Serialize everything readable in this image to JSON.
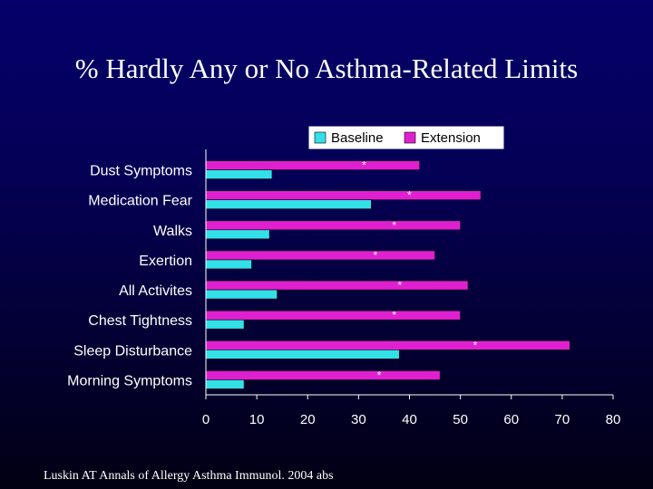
{
  "slide": {
    "title": "% Hardly Any or No Asthma-Related Limits",
    "source": "Luskin AT  Annals of Allergy Asthma Immunol. 2004 abs"
  },
  "colors": {
    "baseline": "#33e0e8",
    "extension": "#e020d0",
    "axis": "#ffffff"
  },
  "chart_data": {
    "type": "bar",
    "orientation": "horizontal",
    "title": "",
    "xlabel": "",
    "ylabel": "",
    "xlim": [
      0,
      80
    ],
    "x_ticks": [
      "0",
      "10",
      "20",
      "30",
      "40",
      "50",
      "60",
      "70",
      "80"
    ],
    "grid": false,
    "legend": "top-right",
    "categories": [
      "Dust Symptoms",
      "Medication Fear",
      "Walks",
      "Exertion",
      "All Activites",
      "Chest Tightness",
      "Sleep Disturbance",
      "Morning Symptoms"
    ],
    "series": [
      {
        "name": "Baseline",
        "values": [
          13,
          32.5,
          12.5,
          9,
          14,
          7.5,
          38,
          7.5
        ]
      },
      {
        "name": "Extension",
        "values": [
          42,
          54,
          50,
          45,
          51.5,
          50,
          71.5,
          46
        ]
      }
    ],
    "annotations": [
      "*",
      "*",
      "*",
      "*",
      "*",
      "*",
      "*",
      "*"
    ]
  }
}
